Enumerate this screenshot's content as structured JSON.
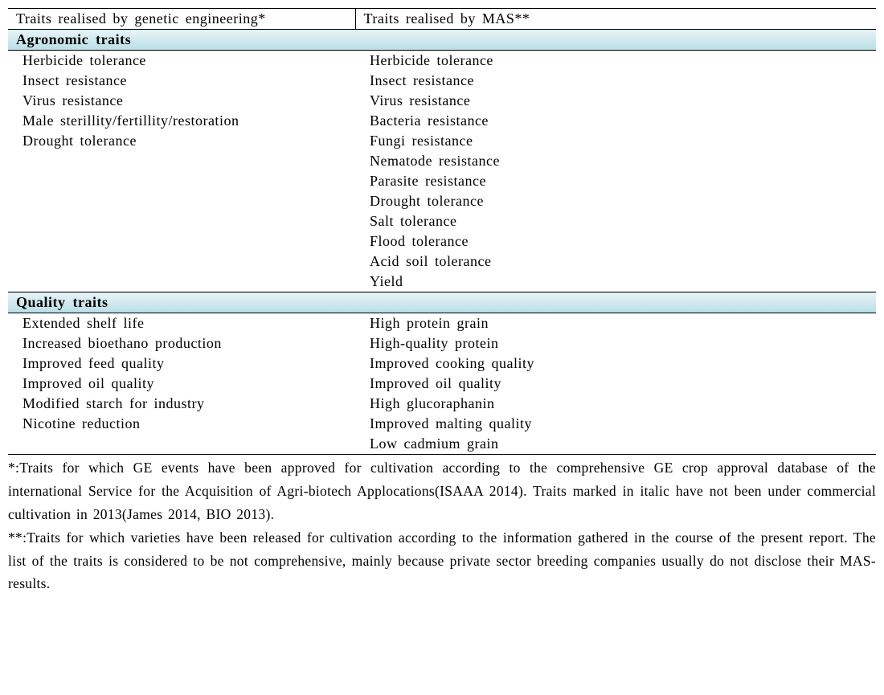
{
  "columns": {
    "left": "Traits realised by genetic engineering*",
    "right": "Traits realised by MAS**"
  },
  "sections": [
    {
      "title": "Agronomic traits",
      "rows": [
        [
          "Herbicide tolerance",
          "Herbicide tolerance"
        ],
        [
          "Insect resistance",
          "Insect resistance"
        ],
        [
          "Virus resistance",
          "Virus resistance"
        ],
        [
          "Male sterillity/fertillity/restoration",
          "Bacteria resistance"
        ],
        [
          "Drought tolerance",
          "Fungi resistance"
        ],
        [
          "",
          "Nematode resistance"
        ],
        [
          "",
          "Parasite resistance"
        ],
        [
          "",
          "Drought tolerance"
        ],
        [
          "",
          "Salt tolerance"
        ],
        [
          "",
          "Flood tolerance"
        ],
        [
          "",
          "Acid soil tolerance"
        ],
        [
          "",
          "Yield"
        ]
      ]
    },
    {
      "title": "Quality traits",
      "rows": [
        [
          "Extended shelf life",
          "High protein grain"
        ],
        [
          "Increased bioethano production",
          "High-quality protein"
        ],
        [
          "Improved feed quality",
          "Improved cooking quality"
        ],
        [
          "Improved oil quality",
          "Improved oil quality"
        ],
        [
          "Modified starch for industry",
          "High glucoraphanin"
        ],
        [
          "Nicotine reduction",
          "Improved malting quality"
        ],
        [
          "",
          "Low cadmium grain"
        ]
      ]
    }
  ],
  "footnote1": "*:Traits for which GE events have been approved for cultivation according to the comprehensive GE crop approval database of the international Service for the Acquisition of Agri-biotech Applocations(ISAAA 2014). Traits marked in italic have not been under commercial cultivation in 2013(James 2014, BIO 2013).",
  "footnote2": "**:Traits for which varieties have been released for cultivation according to the information gathered in the course of the present report. The list of the traits is considered to be not comprehensive, mainly because private sector breeding companies usually do not disclose their MAS-results."
}
